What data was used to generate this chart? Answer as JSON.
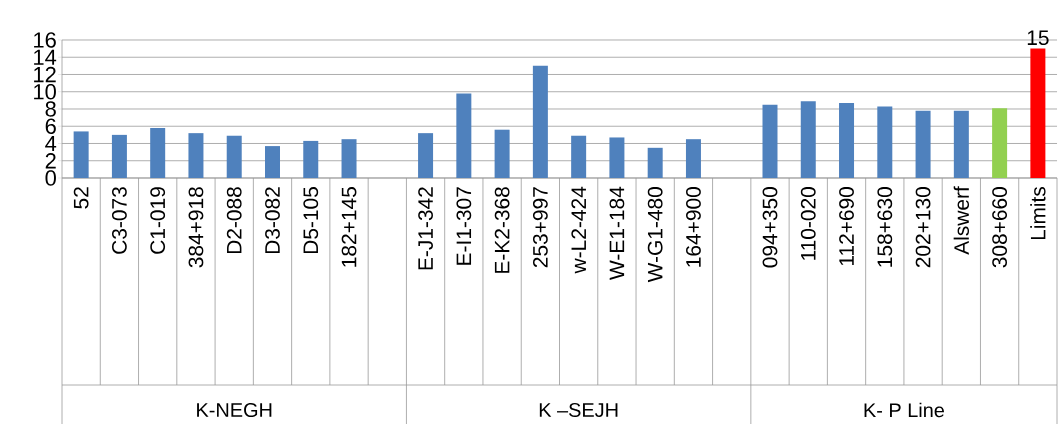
{
  "chart_data": {
    "type": "bar",
    "categories": [
      "52",
      "C3-073",
      "C1-019",
      "384+918",
      "D2-088",
      "D3-082",
      "D5-105",
      "182+145",
      null,
      "E-J1-342",
      "E-I1-307",
      "E-K2-368",
      "253+997",
      "w-L2-424",
      "W-E1-184",
      "W-G1-480",
      "164+900",
      null,
      "094+350",
      "110-020",
      "112+690",
      "158+630",
      "202+130",
      "Alswerf",
      "308+660",
      "Limits"
    ],
    "values": [
      5.4,
      5.0,
      5.8,
      5.2,
      4.9,
      3.7,
      4.3,
      4.5,
      null,
      5.2,
      9.8,
      5.6,
      13.0,
      4.9,
      4.7,
      3.5,
      4.5,
      null,
      8.5,
      8.9,
      8.7,
      8.3,
      7.8,
      7.8,
      8.1,
      15.0
    ],
    "colors": [
      "#4f81bd",
      "#4f81bd",
      "#4f81bd",
      "#4f81bd",
      "#4f81bd",
      "#4f81bd",
      "#4f81bd",
      "#4f81bd",
      "#4f81bd",
      "#4f81bd",
      "#4f81bd",
      "#4f81bd",
      "#4f81bd",
      "#4f81bd",
      "#4f81bd",
      "#4f81bd",
      "#4f81bd",
      "#4f81bd",
      "#4f81bd",
      "#4f81bd",
      "#4f81bd",
      "#4f81bd",
      "#4f81bd",
      "#4f81bd",
      "#92d050",
      "#ff0000"
    ],
    "value_labels": [
      null,
      null,
      null,
      null,
      null,
      null,
      null,
      null,
      null,
      null,
      null,
      null,
      null,
      null,
      null,
      null,
      null,
      null,
      null,
      null,
      null,
      null,
      null,
      null,
      null,
      "15"
    ],
    "annotations": [
      "K-NEGH",
      "K –SEJH",
      "K- P Line"
    ],
    "ylim": [
      0,
      16
    ],
    "yticks": [
      0,
      2,
      4,
      6,
      8,
      10,
      12,
      14,
      16
    ],
    "grid": "y"
  }
}
